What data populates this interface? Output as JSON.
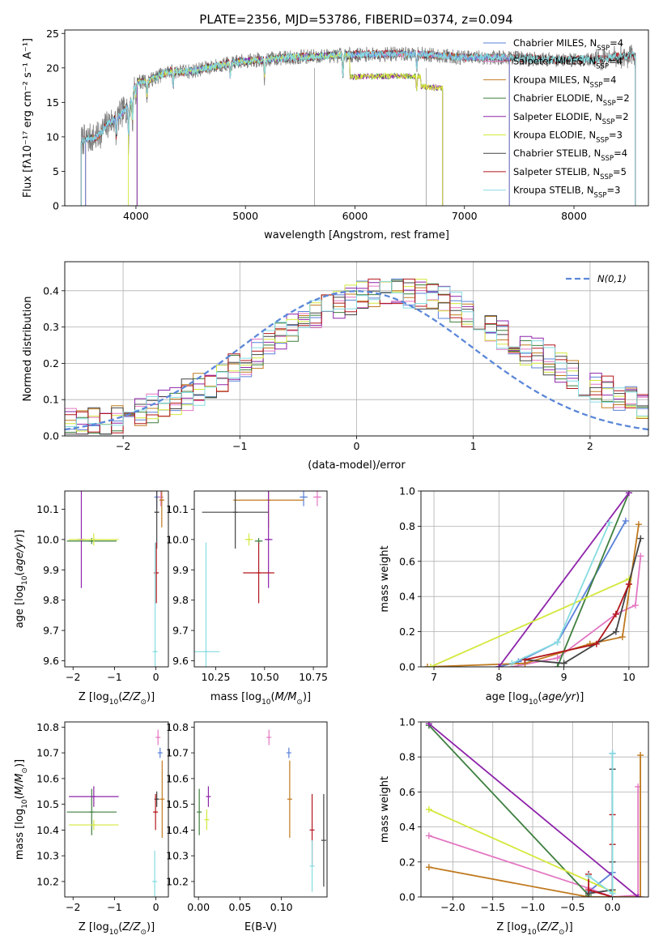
{
  "figure_title": "PLATE=2356, MJD=53786, FIBERID=0374, z=0.094",
  "colors": {
    "Chabrier MILES": "#5a80d8",
    "Salpeter MILES": "#e377c2",
    "Kroupa MILES": "#c07a1f",
    "Chabrier ELODIE": "#3f7f3f",
    "Salpeter ELODIE": "#8e24aa",
    "Kroupa ELODIE": "#d4e83c",
    "Chabrier STELIB": "#444444",
    "Salpeter STELIB": "#b3161c",
    "Kroupa STELIB": "#86dce0"
  },
  "chart_data": [
    {
      "id": "spectrum",
      "type": "line",
      "xlabel": "wavelength [Angstrom, rest frame]",
      "ylabel": "Flux [fλ10⁻¹⁷ erg cm⁻² s⁻¹ A⁻¹]",
      "xlim": [
        3350,
        8680
      ],
      "ylim": [
        0,
        25.5
      ],
      "xticks": [
        4000,
        5000,
        6000,
        7000,
        8000
      ],
      "yticks": [
        0,
        5,
        10,
        15,
        20,
        25
      ],
      "grid": false,
      "legend_position": "top-right",
      "legend": [
        {
          "name": "Chabrier MILES",
          "base": "Chabrier MILES, N",
          "sub": "SSP",
          "tail": "=4"
        },
        {
          "name": "Salpeter MILES",
          "base": "Salpeter MILES, N",
          "sub": "SSP",
          "tail": "=4"
        },
        {
          "name": "Kroupa MILES",
          "base": "Kroupa MILES, N",
          "sub": "SSP",
          "tail": "=4"
        },
        {
          "name": "Chabrier ELODIE",
          "base": "Chabrier ELODIE, N",
          "sub": "SSP",
          "tail": "=2"
        },
        {
          "name": "Salpeter ELODIE",
          "base": "Salpeter ELODIE, N",
          "sub": "SSP",
          "tail": "=2"
        },
        {
          "name": "Kroupa ELODIE",
          "base": "Kroupa ELODIE, N",
          "sub": "SSP",
          "tail": "=3"
        },
        {
          "name": "Chabrier STELIB",
          "base": "Chabrier STELIB, N",
          "sub": "SSP",
          "tail": "=4"
        },
        {
          "name": "Salpeter STELIB",
          "base": "Salpeter STELIB, N",
          "sub": "SSP",
          "tail": "=5"
        },
        {
          "name": "Kroupa STELIB",
          "base": "Kroupa STELIB, N",
          "sub": "SSP",
          "tail": "=3"
        }
      ],
      "data_anchors": [
        [
          3500,
          9.5
        ],
        [
          3650,
          10
        ],
        [
          3750,
          12
        ],
        [
          3850,
          13
        ],
        [
          3950,
          15
        ],
        [
          4000,
          18
        ],
        [
          4100,
          18
        ],
        [
          4300,
          19.5
        ],
        [
          4500,
          19.5
        ],
        [
          4800,
          20.5
        ],
        [
          5000,
          21
        ],
        [
          5400,
          21.5
        ],
        [
          5800,
          21.8
        ],
        [
          6200,
          22
        ],
        [
          6600,
          22
        ],
        [
          7000,
          21.5
        ],
        [
          7400,
          21.5
        ],
        [
          7800,
          21.2
        ],
        [
          8200,
          21.2
        ],
        [
          8500,
          21.8
        ]
      ],
      "model_ranges": {
        "MILES": [
          3540,
          7410
        ],
        "ELODIE": [
          4010,
          6800
        ],
        "STELIB": [
          3200,
          8650
        ]
      },
      "elodie_red_level": 16.5
    },
    {
      "id": "residual-hist",
      "type": "histogram",
      "xlabel": "(data-model)/error",
      "ylabel": "Normed distribution",
      "xlim": [
        -2.5,
        2.5
      ],
      "ylim": [
        0,
        0.48
      ],
      "xticks": [
        -2,
        -1,
        0,
        1,
        2
      ],
      "yticks": [
        0.0,
        0.1,
        0.2,
        0.3,
        0.4
      ],
      "grid": true,
      "legend_position": "top-right",
      "reference_curve": {
        "name": "N(0,1)",
        "mean": 0,
        "sigma": 1
      },
      "bin_width": 0.1
    },
    {
      "id": "age-vs-Z",
      "type": "errorbar",
      "xlabel": "Z [log10(Z/Z⊙)]",
      "ylabel": "age [log10(age/yr)]",
      "xlim": [
        -2.2,
        0.3
      ],
      "ylim": [
        9.58,
        10.16
      ],
      "xticks": [
        -2,
        -1,
        0
      ],
      "yticks": [
        9.6,
        9.7,
        9.8,
        9.9,
        10.0,
        10.1
      ],
      "points": [
        {
          "model": "Chabrier MILES",
          "x": 0.02,
          "xerr": 0.03,
          "y": 10.14,
          "yerr": 0.04
        },
        {
          "model": "Salpeter MILES",
          "x": 0.12,
          "xerr": 0.05,
          "y": 10.14,
          "yerr": 0.03
        },
        {
          "model": "Kroupa MILES",
          "x": 0.14,
          "xerr": 0.05,
          "y": 10.13,
          "yerr": 0.09
        },
        {
          "model": "Chabrier ELODIE",
          "x": -1.55,
          "xerr": 0.6,
          "y": 9.995,
          "yerr": 0.01
        },
        {
          "model": "Salpeter ELODIE",
          "x": -1.8,
          "xerr": 0.1,
          "y": 10.0,
          "yerr": 0.16
        },
        {
          "model": "Kroupa ELODIE",
          "x": -1.5,
          "xerr": 0.6,
          "y": 10.0,
          "yerr": 0.02
        },
        {
          "model": "Chabrier STELIB",
          "x": 0.02,
          "xerr": 0.04,
          "y": 10.09,
          "yerr": 0.12
        },
        {
          "model": "Salpeter STELIB",
          "x": 0.01,
          "xerr": 0.03,
          "y": 9.89,
          "yerr": 0.1
        },
        {
          "model": "Kroupa STELIB",
          "x": -0.02,
          "xerr": 0.03,
          "y": 9.63,
          "yerr": 0.36
        }
      ]
    },
    {
      "id": "age-vs-mass",
      "type": "errorbar",
      "xlabel": "mass [log10(M/M⊙)]",
      "ylabel": "",
      "xlim": [
        10.14,
        10.82
      ],
      "ylim": [
        9.58,
        10.16
      ],
      "xticks": [
        10.25,
        10.5,
        10.75
      ],
      "yticks": [
        9.6,
        9.7,
        9.8,
        9.9,
        10.0,
        10.1
      ],
      "points": [
        {
          "model": "Chabrier MILES",
          "x": 10.7,
          "xerr": 0.02,
          "y": 10.14,
          "yerr": 0.03
        },
        {
          "model": "Salpeter MILES",
          "x": 10.77,
          "xerr": 0.02,
          "y": 10.14,
          "yerr": 0.03
        },
        {
          "model": "Kroupa MILES",
          "x": 10.52,
          "xerr": 0.18,
          "y": 10.13,
          "yerr": 0.09
        },
        {
          "model": "Chabrier ELODIE",
          "x": 10.47,
          "xerr": 0.02,
          "y": 9.995,
          "yerr": 0.01
        },
        {
          "model": "Salpeter ELODIE",
          "x": 10.52,
          "xerr": 0.02,
          "y": 10.0,
          "yerr": 0.16
        },
        {
          "model": "Kroupa ELODIE",
          "x": 10.42,
          "xerr": 0.02,
          "y": 10.0,
          "yerr": 0.02
        },
        {
          "model": "Chabrier STELIB",
          "x": 10.35,
          "xerr": 0.17,
          "y": 10.09,
          "yerr": 0.12
        },
        {
          "model": "Salpeter STELIB",
          "x": 10.47,
          "xerr": 0.08,
          "y": 9.89,
          "yerr": 0.1
        },
        {
          "model": "Kroupa STELIB",
          "x": 10.2,
          "xerr": 0.07,
          "y": 9.63,
          "yerr": 0.36
        }
      ]
    },
    {
      "id": "massweight-vs-age",
      "type": "line",
      "xlabel": "age [log10(age/yr)]",
      "ylabel": "mass weight",
      "xlim": [
        6.8,
        10.3
      ],
      "ylim": [
        0,
        1.0
      ],
      "xticks": [
        7,
        8,
        9,
        10
      ],
      "yticks": [
        0.0,
        0.2,
        0.4,
        0.6,
        0.8,
        1.0
      ],
      "grid": true,
      "series": [
        {
          "model": "Chabrier MILES",
          "x": [
            8.0,
            8.3,
            8.9,
            9.95
          ],
          "y": [
            0.0,
            0.03,
            0.14,
            0.83
          ]
        },
        {
          "model": "Salpeter MILES",
          "x": [
            8.2,
            8.9,
            9.8,
            10.1,
            10.18
          ],
          "y": [
            0.0,
            0.05,
            0.3,
            0.35,
            0.63
          ]
        },
        {
          "model": "Kroupa MILES",
          "x": [
            6.9,
            8.4,
            9.4,
            9.9,
            10.15
          ],
          "y": [
            0.0,
            0.02,
            0.13,
            0.17,
            0.81
          ]
        },
        {
          "model": "Chabrier ELODIE",
          "x": [
            8.9,
            10.0
          ],
          "y": [
            0.0,
            0.99
          ]
        },
        {
          "model": "Salpeter ELODIE",
          "x": [
            8.0,
            10.0
          ],
          "y": [
            0.0,
            0.99
          ]
        },
        {
          "model": "Kroupa ELODIE",
          "x": [
            6.95,
            10.0
          ],
          "y": [
            0.0,
            0.5
          ]
        },
        {
          "model": "Chabrier STELIB",
          "x": [
            8.4,
            9.0,
            9.8,
            10.18
          ],
          "y": [
            0.04,
            0.02,
            0.2,
            0.73
          ]
        },
        {
          "model": "Salpeter STELIB",
          "x": [
            8.4,
            9.5,
            9.8,
            10.0
          ],
          "y": [
            0.04,
            0.13,
            0.3,
            0.47
          ]
        },
        {
          "model": "Kroupa STELIB",
          "x": [
            8.2,
            8.9,
            9.7
          ],
          "y": [
            0.02,
            0.14,
            0.82
          ]
        }
      ]
    },
    {
      "id": "mass-vs-Z",
      "type": "errorbar",
      "xlabel": "Z [log10(Z/Z⊙)]",
      "ylabel": "mass [log10(M/M⊙)]",
      "xlim": [
        -2.2,
        0.3
      ],
      "ylim": [
        10.14,
        10.82
      ],
      "xticks": [
        -2,
        -1,
        0
      ],
      "yticks": [
        10.2,
        10.3,
        10.4,
        10.5,
        10.6,
        10.7,
        10.8
      ],
      "points": [
        {
          "model": "Chabrier MILES",
          "x": 0.1,
          "xerr": 0.02,
          "y": 10.7,
          "yerr": 0.02
        },
        {
          "model": "Salpeter MILES",
          "x": 0.05,
          "xerr": 0.02,
          "y": 10.76,
          "yerr": 0.03
        },
        {
          "model": "Kroupa MILES",
          "x": 0.15,
          "xerr": 0.02,
          "y": 10.52,
          "yerr": 0.15
        },
        {
          "model": "Chabrier ELODIE",
          "x": -1.55,
          "xerr": 0.6,
          "y": 10.47,
          "yerr": 0.09
        },
        {
          "model": "Salpeter ELODIE",
          "x": -1.5,
          "xerr": 0.6,
          "y": 10.53,
          "yerr": 0.04
        },
        {
          "model": "Kroupa ELODIE",
          "x": -1.5,
          "xerr": 0.6,
          "y": 10.42,
          "yerr": 0.02
        },
        {
          "model": "Chabrier STELIB",
          "x": 0.02,
          "xerr": 0.03,
          "y": 10.52,
          "yerr": 0.03
        },
        {
          "model": "Salpeter STELIB",
          "x": -0.01,
          "xerr": 0.03,
          "y": 10.47,
          "yerr": 0.07
        },
        {
          "model": "Kroupa STELIB",
          "x": -0.03,
          "xerr": 0.03,
          "y": 10.2,
          "yerr": 0.12
        }
      ]
    },
    {
      "id": "mass-vs-EBV",
      "type": "errorbar",
      "xlabel": "E(B-V)",
      "ylabel": "",
      "xlim": [
        -0.005,
        0.155
      ],
      "ylim": [
        10.14,
        10.82
      ],
      "xticks": [
        0.0,
        0.05,
        0.1
      ],
      "yticks": [
        10.2,
        10.3,
        10.4,
        10.5,
        10.6,
        10.7,
        10.8
      ],
      "points": [
        {
          "model": "Chabrier MILES",
          "x": 0.109,
          "y": 10.7,
          "yerr": 0.02
        },
        {
          "model": "Salpeter MILES",
          "x": 0.085,
          "y": 10.76,
          "yerr": 0.03
        },
        {
          "model": "Kroupa MILES",
          "x": 0.11,
          "y": 10.52,
          "yerr": 0.15
        },
        {
          "model": "Chabrier ELODIE",
          "x": 0.001,
          "y": 10.47,
          "yerr": 0.09
        },
        {
          "model": "Salpeter ELODIE",
          "x": 0.012,
          "y": 10.53,
          "yerr": 0.04
        },
        {
          "model": "Kroupa ELODIE",
          "x": 0.01,
          "y": 10.44,
          "yerr": 0.04
        },
        {
          "model": "Chabrier STELIB",
          "x": 0.151,
          "y": 10.36,
          "yerr": 0.18
        },
        {
          "model": "Salpeter STELIB",
          "x": 0.137,
          "y": 10.4,
          "yerr": 0.14
        },
        {
          "model": "Kroupa STELIB",
          "x": 0.137,
          "y": 10.26,
          "yerr": 0.1
        }
      ]
    },
    {
      "id": "massweight-vs-Z",
      "type": "line",
      "xlabel": "Z [log10(Z/Z⊙)]",
      "ylabel": "mass weight",
      "xlim": [
        -2.4,
        0.45
      ],
      "ylim": [
        0,
        1.0
      ],
      "xticks": [
        -2.0,
        -1.5,
        -1.0,
        -0.5,
        0.0
      ],
      "yticks": [
        0.0,
        0.2,
        0.4,
        0.6,
        0.8,
        1.0
      ],
      "grid": true,
      "series": [
        {
          "model": "Chabrier MILES",
          "x": [
            -0.3,
            0.0,
            0.0,
            0.0
          ],
          "y": [
            0.03,
            0.14,
            0.82,
            0.0
          ]
        },
        {
          "model": "Salpeter MILES",
          "x": [
            -2.3,
            -0.3,
            0.0,
            0.32,
            0.32
          ],
          "y": [
            0.35,
            0.05,
            0.0,
            0.01,
            0.63
          ]
        },
        {
          "model": "Kroupa MILES",
          "x": [
            -2.3,
            -0.3,
            0.35,
            0.35
          ],
          "y": [
            0.17,
            0.0,
            0.0,
            0.81
          ]
        },
        {
          "model": "Chabrier ELODIE",
          "x": [
            -2.3,
            -0.3
          ],
          "y": [
            0.98,
            0.01
          ]
        },
        {
          "model": "Salpeter ELODIE",
          "x": [
            -2.3,
            0.32
          ],
          "y": [
            0.99,
            0.0
          ]
        },
        {
          "model": "Kroupa ELODIE",
          "x": [
            -2.3,
            0.0
          ],
          "y": [
            0.5,
            0.03
          ]
        },
        {
          "model": "Chabrier STELIB",
          "x": [
            -0.3,
            0.0,
            0.0,
            0.0
          ],
          "y": [
            0.02,
            0.04,
            0.2,
            0.73
          ]
        },
        {
          "model": "Salpeter STELIB",
          "x": [
            -0.3,
            -0.3,
            0.0,
            0.0,
            0.0
          ],
          "y": [
            0.13,
            0.04,
            0.0,
            0.3,
            0.47
          ]
        },
        {
          "model": "Kroupa STELIB",
          "x": [
            -0.3,
            0.0,
            0.0
          ],
          "y": [
            0.12,
            0.02,
            0.82
          ]
        }
      ]
    }
  ]
}
